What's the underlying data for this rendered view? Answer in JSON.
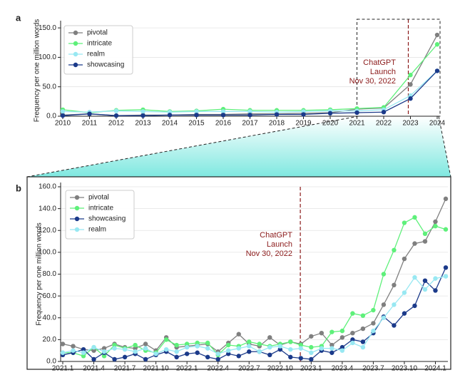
{
  "chart_data": [
    {
      "type": "line",
      "panel_label": "a",
      "ylabel": "Frequency per one million words",
      "x": [
        2010,
        2011,
        2012,
        2013,
        2014,
        2015,
        2016,
        2017,
        2018,
        2019,
        2020,
        2021,
        2022,
        2023,
        2024
      ],
      "xlim": [
        2010,
        2024
      ],
      "xticks": [
        2010,
        2011,
        2012,
        2013,
        2014,
        2015,
        2016,
        2017,
        2018,
        2019,
        2020,
        2021,
        2022,
        2023,
        2024
      ],
      "ylim": [
        0,
        155
      ],
      "yticks": [
        {
          "value": 0,
          "label": "0.0"
        },
        {
          "value": 50,
          "label": "50.0"
        },
        {
          "value": 100,
          "label": "100.0"
        },
        {
          "value": 150,
          "label": "150.0"
        }
      ],
      "grid": true,
      "legend": "upper left",
      "annotation": [
        "ChatGPT",
        "Launch",
        "Nov 30, 2022"
      ],
      "series": [
        {
          "name": "pivotal",
          "color": "#7f7f7f",
          "values": [
            2,
            4,
            1,
            2,
            2,
            3,
            3,
            4,
            4,
            5,
            6,
            12,
            14,
            54,
            138
          ]
        },
        {
          "name": "intricate",
          "color": "#5ef07a",
          "values": [
            11,
            6,
            10,
            11,
            8,
            9,
            12,
            10,
            10,
            10,
            11,
            13,
            15,
            70,
            122
          ]
        },
        {
          "name": "realm",
          "color": "#98e8f2",
          "values": [
            8,
            7,
            9,
            8,
            7,
            8,
            8,
            8,
            7,
            8,
            9,
            9,
            11,
            35,
            77
          ]
        },
        {
          "name": "showcasing",
          "color": "#1b3a8a",
          "values": [
            1,
            4,
            1,
            1,
            2,
            2,
            2,
            2,
            3,
            3,
            5,
            6,
            7,
            30,
            77
          ]
        }
      ]
    },
    {
      "type": "line",
      "panel_label": "b",
      "ylabel": "Frequency per one million words",
      "categories": [
        "2021.1",
        null,
        null,
        "2021.4",
        null,
        null,
        "2021.7",
        null,
        null,
        "2021.10",
        null,
        null,
        "2022.1",
        null,
        null,
        "2022.4",
        null,
        null,
        "2022.7",
        null,
        null,
        "2022.10",
        null,
        null,
        "2023.1",
        null,
        null,
        "2023.4",
        null,
        null,
        "2023.7",
        null,
        null,
        "2023.10",
        null,
        null,
        "2024.1",
        null
      ],
      "ylim": [
        0,
        160
      ],
      "yticks": [
        {
          "value": 0,
          "label": "0.0"
        },
        {
          "value": 20,
          "label": "20.0"
        },
        {
          "value": 40,
          "label": "40.0"
        },
        {
          "value": 60,
          "label": "60.0"
        },
        {
          "value": 80,
          "label": "80.0"
        },
        {
          "value": 100,
          "label": "100.0"
        },
        {
          "value": 120,
          "label": "120.0"
        },
        {
          "value": 140,
          "label": "140.0"
        },
        {
          "value": 160,
          "label": "160.0"
        }
      ],
      "grid": true,
      "legend": "upper left",
      "annotation": [
        "ChatGPT",
        "Launch",
        "Nov 30, 2022"
      ],
      "series": [
        {
          "name": "pivotal",
          "color": "#7f7f7f",
          "values": [
            16,
            14,
            11,
            10,
            12,
            16,
            13,
            12,
            16,
            10,
            22,
            13,
            14,
            15,
            16,
            9,
            17,
            25,
            16,
            14,
            22,
            15,
            18,
            16,
            23,
            26,
            15,
            22,
            26,
            30,
            35,
            52,
            70,
            94,
            108,
            110,
            128,
            149
          ]
        },
        {
          "name": "intricate",
          "color": "#5ef07a",
          "values": [
            8,
            8,
            5,
            13,
            5,
            15,
            12,
            15,
            10,
            8,
            20,
            15,
            16,
            17,
            17,
            6,
            15,
            14,
            18,
            16,
            14,
            16,
            18,
            15,
            13,
            14,
            27,
            28,
            44,
            42,
            47,
            80,
            102,
            127,
            132,
            117,
            124,
            121
          ]
        },
        {
          "name": "showcasing",
          "color": "#1b3a8a",
          "values": [
            6,
            8,
            11,
            2,
            8,
            2,
            4,
            7,
            2,
            6,
            9,
            4,
            7,
            8,
            4,
            2,
            7,
            5,
            9,
            9,
            6,
            11,
            4,
            3,
            2,
            10,
            8,
            13,
            20,
            18,
            26,
            41,
            33,
            44,
            51,
            74,
            65,
            86
          ]
        },
        {
          "name": "realm",
          "color": "#98e8f2",
          "values": [
            8,
            10,
            8,
            13,
            9,
            12,
            11,
            9,
            12,
            7,
            11,
            9,
            13,
            14,
            12,
            7,
            10,
            12,
            14,
            9,
            13,
            14,
            11,
            12,
            8,
            12,
            12,
            10,
            17,
            13,
            28,
            40,
            52,
            63,
            77,
            66,
            76,
            78
          ]
        }
      ]
    }
  ]
}
